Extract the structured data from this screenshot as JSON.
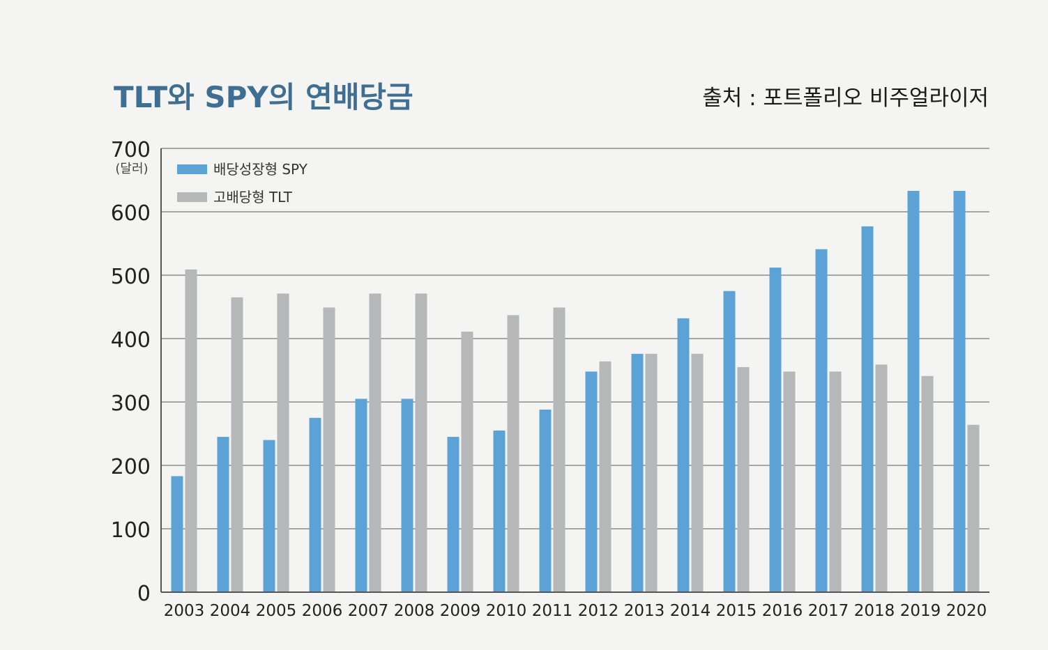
{
  "chart_data": {
    "type": "bar",
    "title": "TLT와 SPY의 연배당금",
    "source": "출처 : 포트폴리오 비주얼라이저",
    "ylabel": "(달러)",
    "ylim": [
      0,
      700
    ],
    "yticks": [
      0,
      100,
      200,
      300,
      400,
      500,
      600,
      700
    ],
    "grid": true,
    "legend_position": "top-left",
    "categories": [
      "2003",
      "2004",
      "2005",
      "2006",
      "2007",
      "2008",
      "2009",
      "2010",
      "2011",
      "2012",
      "2013",
      "2014",
      "2015",
      "2016",
      "2017",
      "2018",
      "2019",
      "2020"
    ],
    "series": [
      {
        "name": "배당성장형 SPY",
        "color": "#5ba3d6",
        "values": [
          183,
          245,
          240,
          275,
          305,
          305,
          245,
          255,
          288,
          348,
          376,
          432,
          475,
          512,
          541,
          577,
          633,
          633
        ]
      },
      {
        "name": "고배당형 TLT",
        "color": "#b5b7b9",
        "values": [
          509,
          465,
          471,
          449,
          471,
          471,
          411,
          437,
          449,
          364,
          376,
          376,
          355,
          348,
          348,
          359,
          341,
          264
        ]
      }
    ]
  }
}
